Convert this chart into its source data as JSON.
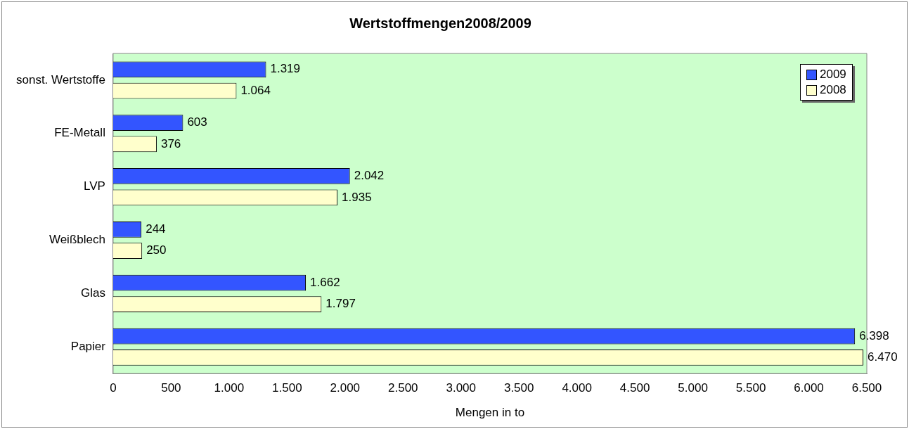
{
  "chart_data": {
    "type": "bar",
    "orientation": "horizontal",
    "title": "Wertstoffmengen2008/2009",
    "xlabel": "Mengen in to",
    "categories": [
      "sonst. Wertstoffe",
      "FE-Metall",
      "LVP",
      "Weißblech",
      "Glas",
      "Papier"
    ],
    "series": [
      {
        "name": "2009",
        "color": "#3355ff",
        "values": [
          1319,
          603,
          2042,
          244,
          1662,
          6398
        ],
        "value_labels": [
          "1.319",
          "603",
          "2.042",
          "244",
          "1.662",
          "6.398"
        ]
      },
      {
        "name": "2008",
        "color": "#ffffcc",
        "values": [
          1064,
          376,
          1935,
          250,
          1797,
          6470
        ],
        "value_labels": [
          "1.064",
          "376",
          "1.935",
          "250",
          "1.797",
          "6.470"
        ]
      }
    ],
    "xlim": [
      0,
      6500
    ],
    "xticks": [
      0,
      500,
      {
        "value": 1000,
        "label": "1.000"
      },
      {
        "value": 1500,
        "label": "1.500"
      },
      {
        "value": 2000,
        "label": "2.000"
      },
      {
        "value": 2500,
        "label": "2.500"
      },
      {
        "value": 3000,
        "label": "3.000"
      },
      {
        "value": 3500,
        "label": "3.500"
      },
      {
        "value": 4000,
        "label": "4.000"
      },
      {
        "value": 4500,
        "label": "4.500"
      },
      {
        "value": 5000,
        "label": "5.000"
      },
      {
        "value": 5500,
        "label": "5.500"
      },
      {
        "value": 6000,
        "label": "6.000"
      },
      {
        "value": 6500,
        "label": "6.500"
      }
    ],
    "grid": false,
    "legend": "top right"
  }
}
